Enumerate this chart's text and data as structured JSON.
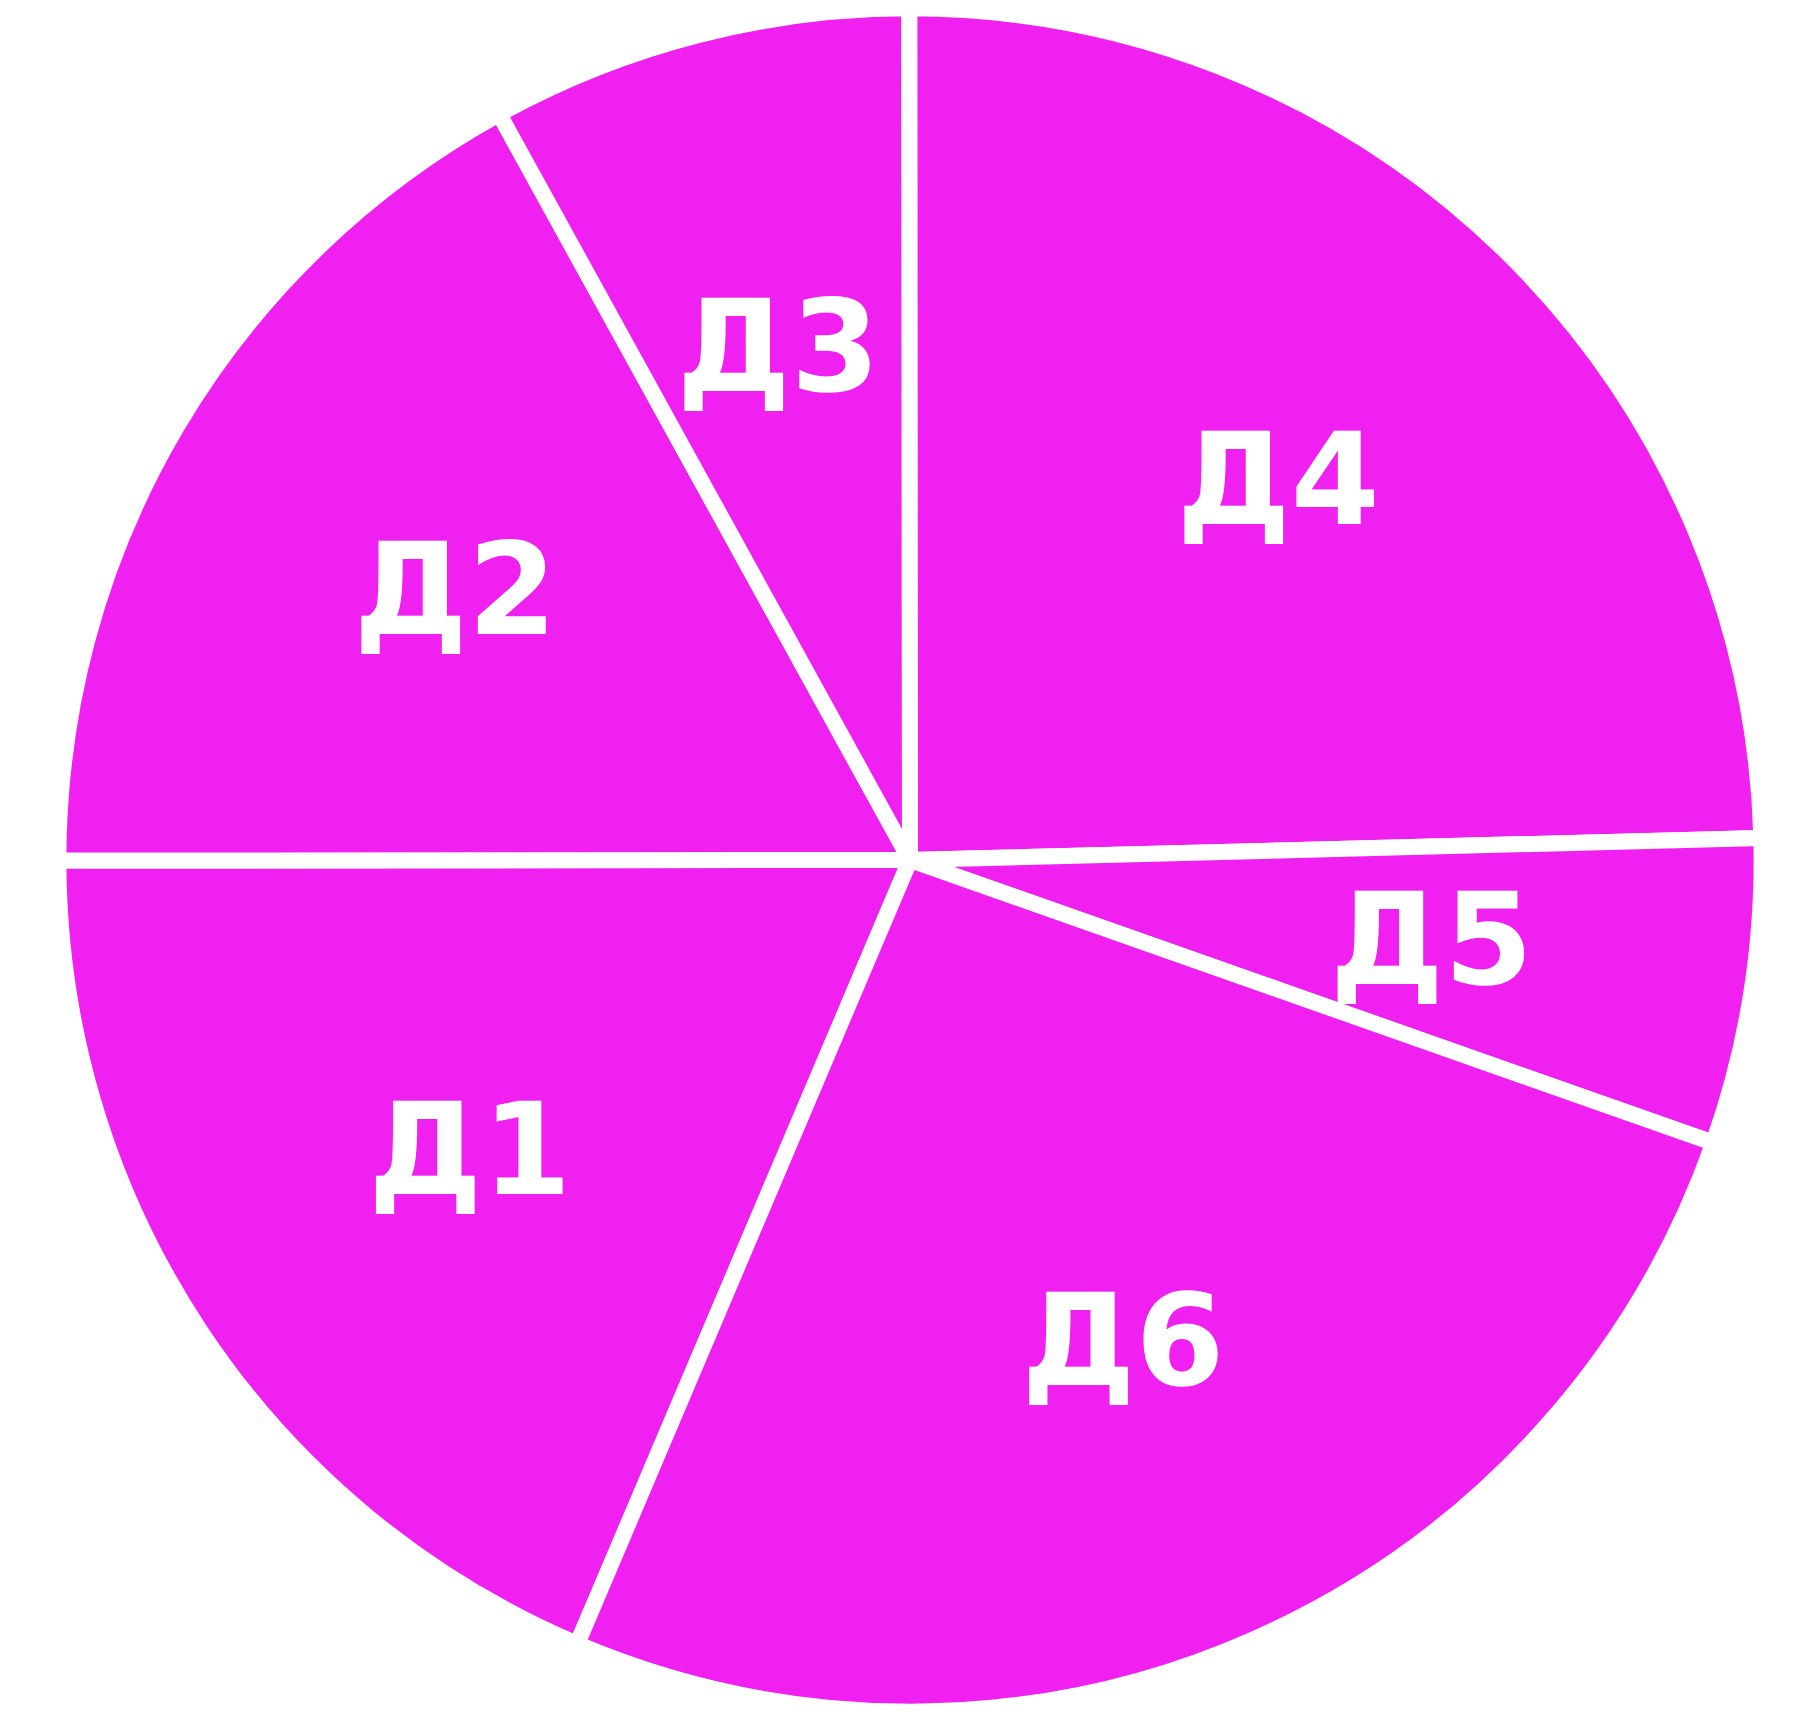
{
  "chart_data": {
    "type": "pie",
    "categories": [
      "Д1",
      "Д2",
      "Д3",
      "Д4",
      "Д5",
      "Д6"
    ],
    "values": [
      18.6,
      17.0,
      8.0,
      24.6,
      5.8,
      26.0
    ],
    "colors": [
      "#f020f0",
      "#f020f0",
      "#f020f0",
      "#f020f0",
      "#f020f0",
      "#f020f0"
    ]
  }
}
